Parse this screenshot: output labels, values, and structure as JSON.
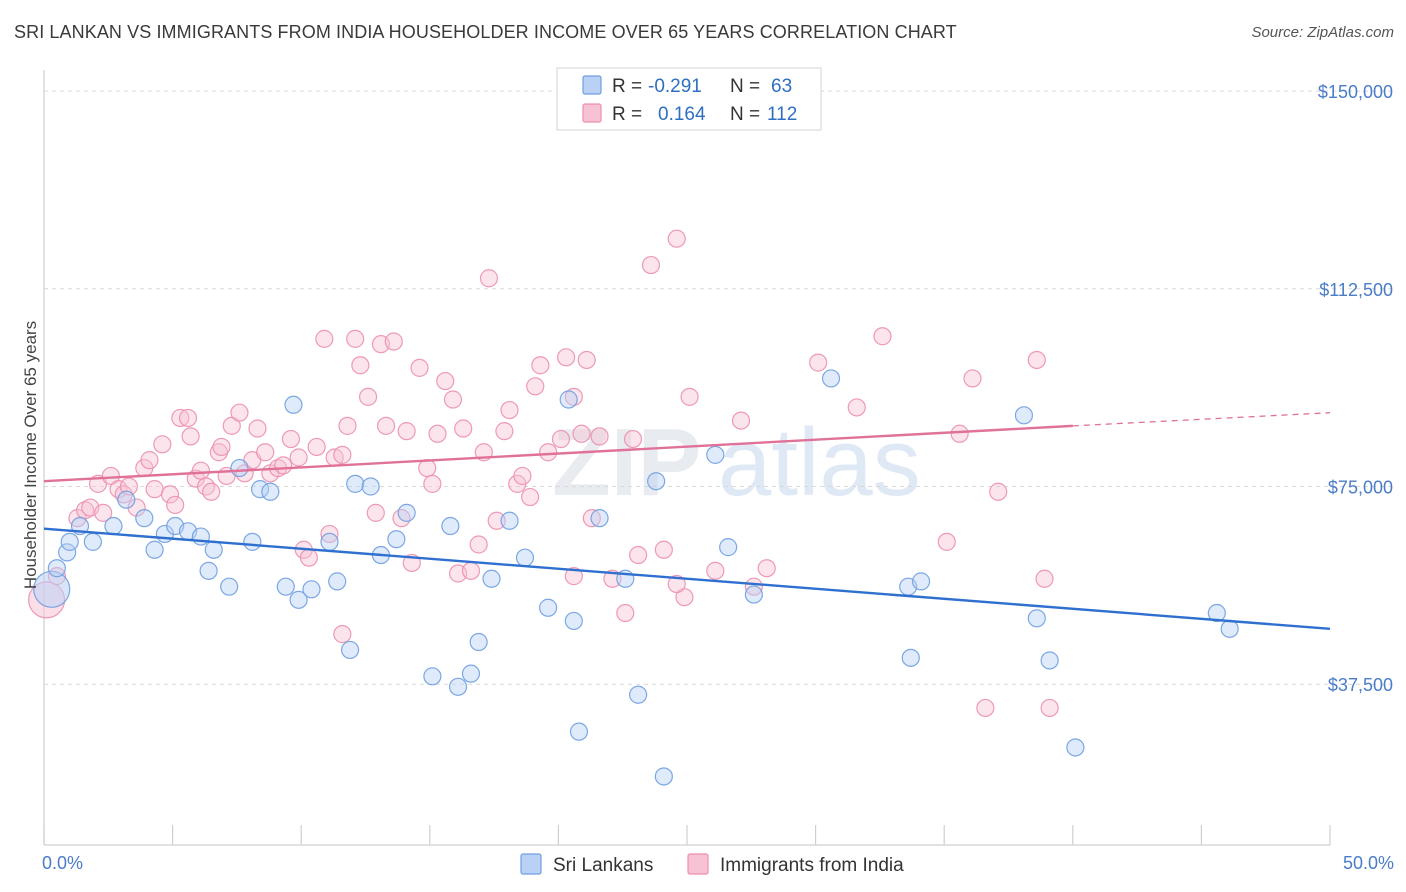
{
  "title": "SRI LANKAN VS IMMIGRANTS FROM INDIA HOUSEHOLDER INCOME OVER 65 YEARS CORRELATION CHART",
  "source": "Source: ZipAtlas.com",
  "watermark": {
    "zip": "ZIP",
    "atlas": "atlas"
  },
  "colors": {
    "blue": "#6f9fe0",
    "blue_fill": "#b9d1f5",
    "blue_line": "#2f6fd0",
    "pink": "#ec8fae",
    "pink_fill": "#f7c3d4",
    "pink_line": "#e0729a",
    "tick_text": "#4a7cc7",
    "grid": "#d9d9d9"
  },
  "legend": {
    "rows": [
      {
        "r_label": "R =",
        "r_value": "-0.291",
        "n_label": "N =",
        "n_value": "63"
      },
      {
        "r_label": "R =",
        "r_value": "0.164",
        "n_label": "N =",
        "n_value": "112"
      }
    ]
  },
  "chart_data": {
    "type": "scatter",
    "title": "SRI LANKAN VS IMMIGRANTS FROM INDIA HOUSEHOLDER INCOME OVER 65 YEARS CORRELATION CHART",
    "xlabel": "",
    "ylabel": "Householder Income Over 65 years",
    "xlim": [
      0,
      50
    ],
    "ylim": [
      7000,
      154000
    ],
    "x_tick_labels": [
      "0.0%",
      "50.0%"
    ],
    "y_ticks": [
      37500,
      75000,
      112500,
      150000
    ],
    "y_tick_labels": [
      "$37,500",
      "$75,000",
      "$112,500",
      "$150,000"
    ],
    "grid": "horizontal dashed",
    "legend_position": "top-center",
    "series": [
      {
        "name": "Sri Lankans",
        "r": -0.291,
        "n": 63,
        "trend": {
          "x": [
            0,
            50
          ],
          "y": [
            67000,
            48000
          ]
        },
        "points": [
          [
            0.3,
            55500
          ],
          [
            0.5,
            59500
          ],
          [
            0.9,
            62500
          ],
          [
            1.0,
            64500
          ],
          [
            1.4,
            67500
          ],
          [
            1.9,
            64500
          ],
          [
            2.7,
            67500
          ],
          [
            3.2,
            72500
          ],
          [
            3.9,
            69000
          ],
          [
            4.3,
            63000
          ],
          [
            4.7,
            66000
          ],
          [
            5.1,
            67500
          ],
          [
            5.6,
            66500
          ],
          [
            6.1,
            65500
          ],
          [
            6.4,
            59000
          ],
          [
            6.6,
            63000
          ],
          [
            7.2,
            56000
          ],
          [
            7.6,
            78500
          ],
          [
            8.1,
            64500
          ],
          [
            8.4,
            74500
          ],
          [
            8.8,
            74000
          ],
          [
            9.4,
            56000
          ],
          [
            9.7,
            90500
          ],
          [
            9.9,
            53500
          ],
          [
            10.4,
            55500
          ],
          [
            11.1,
            64500
          ],
          [
            11.4,
            57000
          ],
          [
            11.9,
            44000
          ],
          [
            12.1,
            75500
          ],
          [
            12.7,
            75000
          ],
          [
            13.1,
            62000
          ],
          [
            13.7,
            65000
          ],
          [
            14.1,
            70000
          ],
          [
            15.1,
            39000
          ],
          [
            15.8,
            67500
          ],
          [
            16.1,
            37000
          ],
          [
            16.6,
            39500
          ],
          [
            16.9,
            45500
          ],
          [
            17.4,
            57500
          ],
          [
            18.1,
            68500
          ],
          [
            18.7,
            61500
          ],
          [
            19.6,
            52000
          ],
          [
            20.4,
            91500
          ],
          [
            20.6,
            49500
          ],
          [
            20.8,
            28500
          ],
          [
            21.6,
            69000
          ],
          [
            22.6,
            57500
          ],
          [
            23.1,
            35500
          ],
          [
            23.8,
            76000
          ],
          [
            24.1,
            20000
          ],
          [
            26.1,
            81000
          ],
          [
            26.6,
            63500
          ],
          [
            27.6,
            54500
          ],
          [
            30.6,
            95500
          ],
          [
            33.6,
            56000
          ],
          [
            33.7,
            42500
          ],
          [
            34.1,
            57000
          ],
          [
            38.1,
            88500
          ],
          [
            38.6,
            50000
          ],
          [
            39.1,
            42000
          ],
          [
            40.1,
            25500
          ],
          [
            45.6,
            51000
          ],
          [
            46.1,
            48000
          ]
        ]
      },
      {
        "name": "Immigrants from India",
        "r": 0.164,
        "n": 112,
        "trend": {
          "x": [
            0,
            40
          ],
          "y": [
            76000,
            86500
          ]
        },
        "trend_dashed": {
          "x": [
            40,
            50
          ],
          "y": [
            86500,
            89000
          ]
        },
        "points": [
          [
            0.1,
            53500
          ],
          [
            0.5,
            58000
          ],
          [
            1.3,
            69000
          ],
          [
            1.6,
            70500
          ],
          [
            1.8,
            71000
          ],
          [
            2.1,
            75500
          ],
          [
            2.3,
            70000
          ],
          [
            2.6,
            77000
          ],
          [
            2.9,
            74500
          ],
          [
            3.1,
            73500
          ],
          [
            3.3,
            75000
          ],
          [
            3.6,
            71000
          ],
          [
            3.9,
            78500
          ],
          [
            4.1,
            80000
          ],
          [
            4.3,
            74500
          ],
          [
            4.6,
            83000
          ],
          [
            4.9,
            73500
          ],
          [
            5.1,
            71500
          ],
          [
            5.3,
            88000
          ],
          [
            5.6,
            88000
          ],
          [
            5.7,
            84500
          ],
          [
            5.9,
            76500
          ],
          [
            6.1,
            78000
          ],
          [
            6.3,
            75000
          ],
          [
            6.5,
            74000
          ],
          [
            6.8,
            81500
          ],
          [
            6.9,
            82500
          ],
          [
            7.1,
            77000
          ],
          [
            7.3,
            86500
          ],
          [
            7.6,
            89000
          ],
          [
            7.8,
            77500
          ],
          [
            8.1,
            80000
          ],
          [
            8.3,
            86000
          ],
          [
            8.6,
            81500
          ],
          [
            8.8,
            77500
          ],
          [
            9.1,
            78500
          ],
          [
            9.3,
            79000
          ],
          [
            9.6,
            84000
          ],
          [
            9.9,
            80500
          ],
          [
            10.1,
            63000
          ],
          [
            10.3,
            61500
          ],
          [
            10.6,
            82500
          ],
          [
            10.9,
            103000
          ],
          [
            11.1,
            66000
          ],
          [
            11.3,
            80500
          ],
          [
            11.6,
            81000
          ],
          [
            11.8,
            86500
          ],
          [
            12.1,
            103000
          ],
          [
            12.3,
            98000
          ],
          [
            12.6,
            92000
          ],
          [
            12.9,
            70000
          ],
          [
            13.1,
            102000
          ],
          [
            13.3,
            86500
          ],
          [
            13.6,
            102500
          ],
          [
            13.9,
            69000
          ],
          [
            14.1,
            85500
          ],
          [
            14.3,
            60500
          ],
          [
            14.6,
            97500
          ],
          [
            14.9,
            78500
          ],
          [
            15.1,
            75500
          ],
          [
            15.3,
            85000
          ],
          [
            15.6,
            95000
          ],
          [
            15.9,
            91500
          ],
          [
            16.1,
            58500
          ],
          [
            16.3,
            86000
          ],
          [
            16.6,
            59000
          ],
          [
            16.9,
            64000
          ],
          [
            17.1,
            81500
          ],
          [
            17.3,
            114500
          ],
          [
            17.6,
            68500
          ],
          [
            17.9,
            85500
          ],
          [
            18.1,
            89500
          ],
          [
            18.4,
            75500
          ],
          [
            18.6,
            77000
          ],
          [
            18.9,
            73000
          ],
          [
            19.1,
            94000
          ],
          [
            19.3,
            98000
          ],
          [
            19.6,
            81500
          ],
          [
            20.1,
            84000
          ],
          [
            20.3,
            99500
          ],
          [
            20.6,
            92000
          ],
          [
            20.9,
            85000
          ],
          [
            21.1,
            99000
          ],
          [
            21.3,
            69000
          ],
          [
            21.6,
            84500
          ],
          [
            22.1,
            57500
          ],
          [
            22.6,
            51000
          ],
          [
            22.9,
            84000
          ],
          [
            23.1,
            62000
          ],
          [
            23.6,
            117000
          ],
          [
            24.1,
            63000
          ],
          [
            24.6,
            122000
          ],
          [
            24.9,
            54000
          ],
          [
            25.1,
            92000
          ],
          [
            26.1,
            59000
          ],
          [
            27.1,
            87500
          ],
          [
            27.6,
            56000
          ],
          [
            28.1,
            59500
          ],
          [
            30.1,
            98500
          ],
          [
            31.6,
            90000
          ],
          [
            32.6,
            103500
          ],
          [
            35.1,
            64500
          ],
          [
            35.6,
            85000
          ],
          [
            36.1,
            95500
          ],
          [
            37.1,
            74000
          ],
          [
            38.6,
            99000
          ],
          [
            39.1,
            33000
          ],
          [
            38.9,
            57500
          ],
          [
            36.6,
            33000
          ],
          [
            11.6,
            47000
          ],
          [
            20.6,
            58000
          ],
          [
            24.6,
            56500
          ]
        ]
      }
    ]
  },
  "bottom_legend": {
    "items": [
      {
        "label": "Sri Lankans"
      },
      {
        "label": "Immigrants from India"
      }
    ]
  }
}
